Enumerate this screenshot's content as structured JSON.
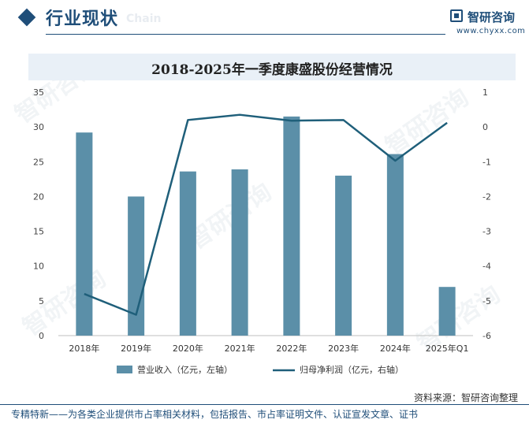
{
  "header": {
    "section_title": "行业现状",
    "section_title_en": "Chain",
    "brand_name": "智研咨询",
    "brand_url": "www.chyxx.com"
  },
  "watermark": "智研咨询",
  "source": "资料来源：智研咨询整理",
  "footer": "专精特新——为各类企业提供市占率相关材料，包括报告、市占率证明文件、认证宣发文章、证书",
  "chart_data": {
    "type": "bar+line",
    "title": "2018-2025年一季度康盛股份经营情况",
    "categories": [
      "2018年",
      "2019年",
      "2020年",
      "2021年",
      "2022年",
      "2023年",
      "2024年",
      "2025年Q1"
    ],
    "series": [
      {
        "name": "营业收入（亿元，左轴）",
        "type": "bar",
        "axis": "left",
        "color": "#5b8fa8",
        "values": [
          29.2,
          20.0,
          23.6,
          23.9,
          31.5,
          23.0,
          26.1,
          7.0
        ]
      },
      {
        "name": "归母净利润（亿元，右轴）",
        "type": "line",
        "axis": "right",
        "color": "#1f5f7a",
        "values": [
          -4.8,
          -5.4,
          0.2,
          0.35,
          0.18,
          0.2,
          -0.97,
          0.12
        ]
      }
    ],
    "yleft": {
      "min": 0,
      "max": 35,
      "ticks": [
        0,
        5,
        10,
        15,
        20,
        25,
        30,
        35
      ]
    },
    "yright": {
      "min": -6,
      "max": 1,
      "ticks": [
        -6,
        -5,
        -4,
        -3,
        -2,
        -1,
        0,
        1
      ]
    },
    "grid": false,
    "legend": "bottom"
  }
}
